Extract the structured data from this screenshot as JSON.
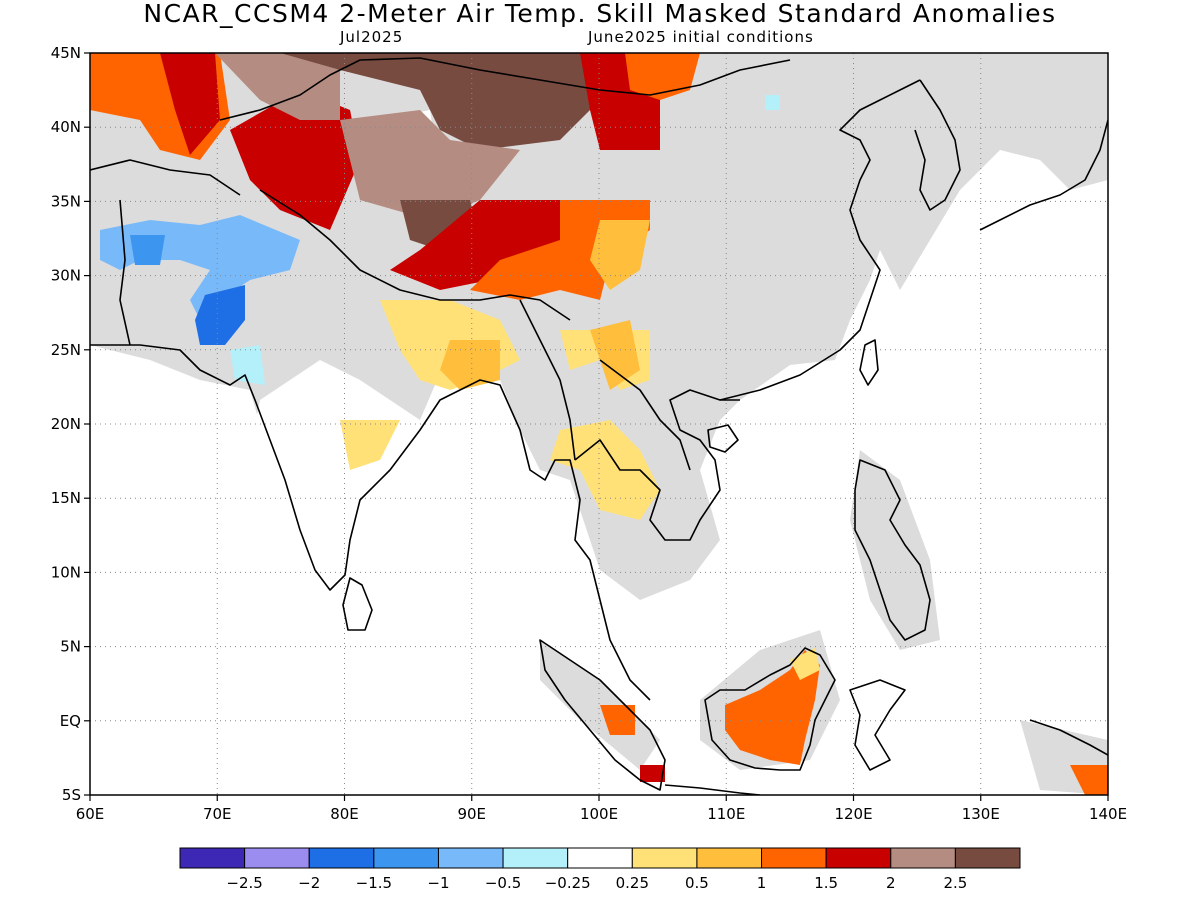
{
  "title": "NCAR_CCSM4 2-Meter Air Temp. Skill Masked Standard Anomalies",
  "subtitle_left": "Jul2025",
  "subtitle_right": "June2025 initial conditions",
  "map": {
    "lon_range": [
      60,
      140
    ],
    "lat_range": [
      -5,
      45
    ],
    "grid": "dotted",
    "lat_ticks": [
      {
        "value": 45,
        "label": "45N"
      },
      {
        "value": 40,
        "label": "40N"
      },
      {
        "value": 35,
        "label": "35N"
      },
      {
        "value": 30,
        "label": "30N"
      },
      {
        "value": 25,
        "label": "25N"
      },
      {
        "value": 20,
        "label": "20N"
      },
      {
        "value": 15,
        "label": "15N"
      },
      {
        "value": 10,
        "label": "10N"
      },
      {
        "value": 5,
        "label": "5N"
      },
      {
        "value": 0,
        "label": "EQ"
      },
      {
        "value": -5,
        "label": "5S"
      }
    ],
    "lon_ticks": [
      {
        "value": 60,
        "label": "60E"
      },
      {
        "value": 70,
        "label": "70E"
      },
      {
        "value": 80,
        "label": "80E"
      },
      {
        "value": 90,
        "label": "90E"
      },
      {
        "value": 100,
        "label": "100E"
      },
      {
        "value": 110,
        "label": "110E"
      },
      {
        "value": 120,
        "label": "120E"
      },
      {
        "value": 130,
        "label": "130E"
      },
      {
        "value": 140,
        "label": "140E"
      }
    ],
    "colors": {
      "land_mask": "#dcdcdc",
      "coast": "#000000"
    }
  },
  "colorbar": {
    "bins": [
      {
        "color": "#3c28b4"
      },
      {
        "color": "#9b8cf0"
      },
      {
        "color": "#1e6ee6"
      },
      {
        "color": "#3c96f0"
      },
      {
        "color": "#78b9fa"
      },
      {
        "color": "#b4f0fa"
      },
      {
        "color": "#ffffff"
      },
      {
        "color": "#ffe178"
      },
      {
        "color": "#ffbe3c"
      },
      {
        "color": "#ff6400"
      },
      {
        "color": "#c80000"
      },
      {
        "color": "#b48c82"
      },
      {
        "color": "#784b41"
      }
    ],
    "labels": [
      "−2.5",
      "−2",
      "−1.5",
      "−1",
      "−0.5",
      "−0.25",
      "0.25",
      "0.5",
      "1",
      "1.5",
      "2",
      "2.5"
    ]
  }
}
